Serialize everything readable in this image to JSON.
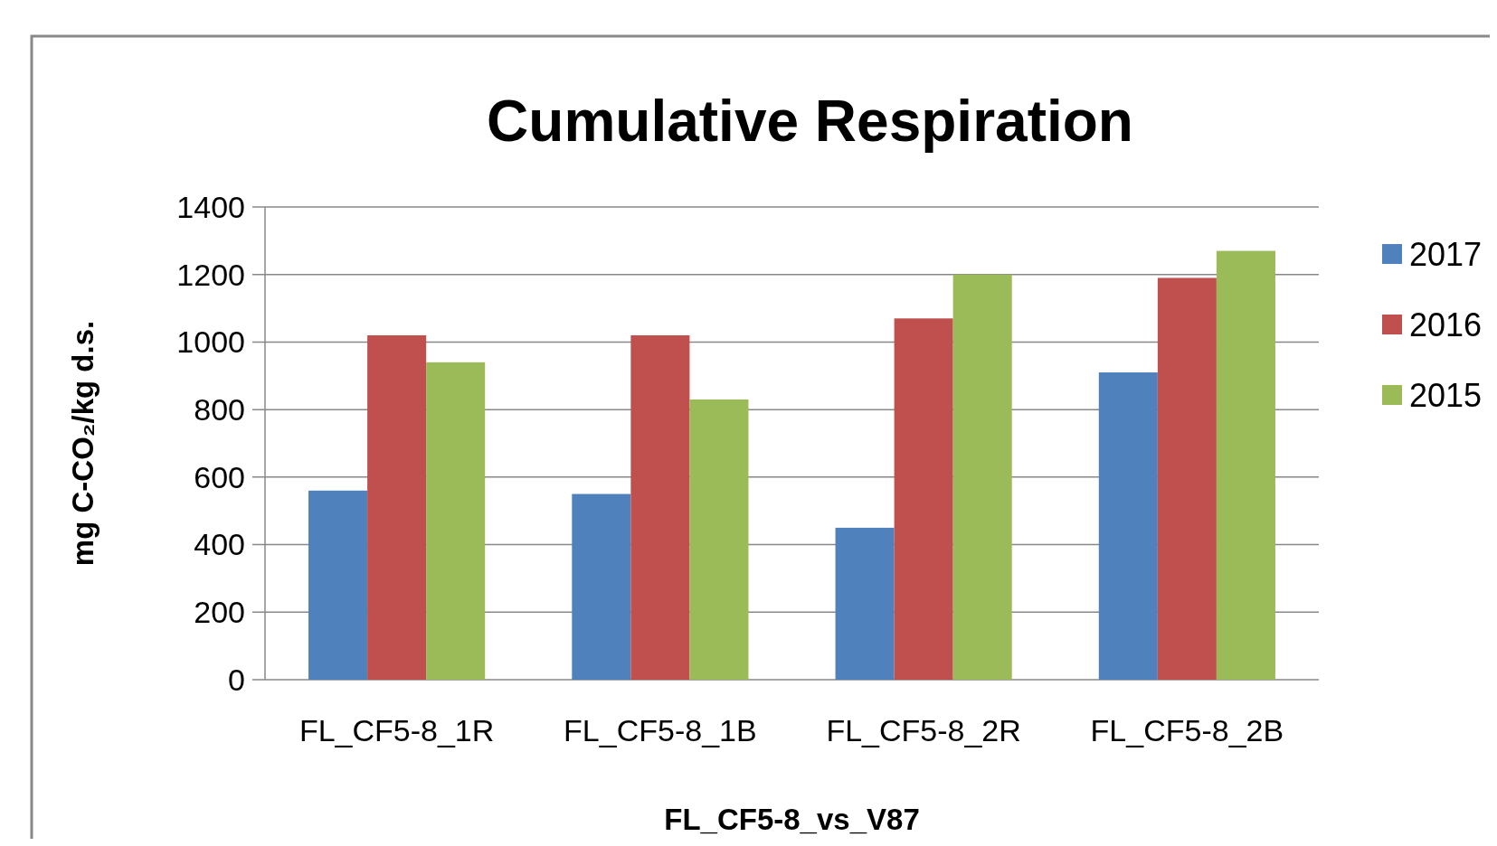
{
  "chart_data": {
    "type": "bar",
    "title": "Cumulative Respiration",
    "xlabel": "FL_CF5-8_vs_V87",
    "ylabel": "mg C-CO₂/kg d.s.",
    "categories": [
      "FL_CF5-8_1R",
      "FL_CF5-8_1B",
      "FL_CF5-8_2R",
      "FL_CF5-8_2B"
    ],
    "series": [
      {
        "name": "2017",
        "color": "#4f81bd",
        "values": [
          560,
          550,
          450,
          910
        ]
      },
      {
        "name": "2016",
        "color": "#c0504d",
        "values": [
          1020,
          1020,
          1070,
          1190
        ]
      },
      {
        "name": "2015",
        "color": "#9bbb59",
        "values": [
          940,
          830,
          1200,
          1270
        ]
      }
    ],
    "ylim": [
      0,
      1400
    ],
    "yticks": [
      0,
      200,
      400,
      600,
      800,
      1000,
      1200,
      1400
    ],
    "grid": "y",
    "legend": "right"
  }
}
